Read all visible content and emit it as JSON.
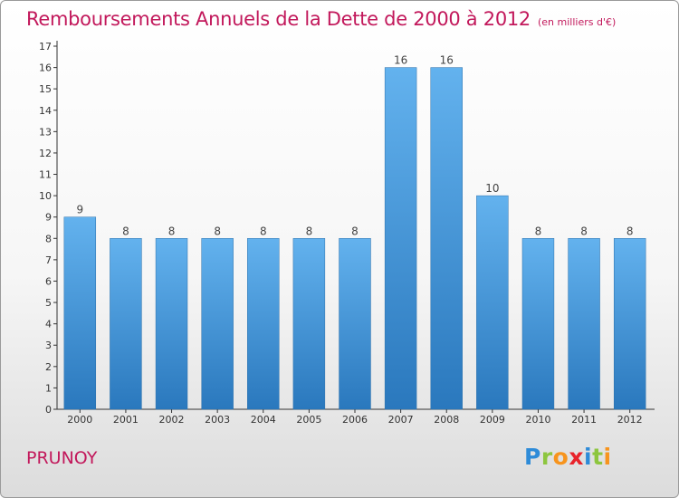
{
  "chart_data": {
    "type": "bar",
    "title": "Remboursements Annuels de la Dette de 2000 à 2012",
    "subtitle": "(en milliers d'€)",
    "categories": [
      "2000",
      "2001",
      "2002",
      "2003",
      "2004",
      "2005",
      "2006",
      "2007",
      "2008",
      "2009",
      "2010",
      "2011",
      "2012"
    ],
    "values": [
      9,
      8,
      8,
      8,
      8,
      8,
      8,
      16,
      16,
      10,
      8,
      8,
      8
    ],
    "data_labels": [
      "9",
      "8",
      "8",
      "8",
      "8",
      "8",
      "8",
      "16",
      "16",
      "10",
      "8",
      "8",
      "8"
    ],
    "y_ticks": [
      0,
      1,
      2,
      3,
      4,
      5,
      6,
      7,
      8,
      9,
      10,
      11,
      12,
      13,
      14,
      15,
      16,
      17
    ],
    "ylim": [
      0,
      17
    ],
    "xlabel": "",
    "ylabel": "",
    "grid": false,
    "bar_color": "#3d8fd6"
  },
  "footer": {
    "commune": "PRUNOY"
  },
  "logo": {
    "letters": [
      {
        "char": "P",
        "color": "#2e8bd8"
      },
      {
        "char": "r",
        "color": "#8dc63f"
      },
      {
        "char": "o",
        "color": "#f7941d"
      },
      {
        "char": "x",
        "color": "#e8232b"
      },
      {
        "char": "i",
        "color": "#2e8bd8"
      },
      {
        "char": "t",
        "color": "#8dc63f"
      },
      {
        "char": "i",
        "color": "#f7941d"
      }
    ]
  },
  "colors": {
    "title": "#c2185b",
    "axis": "#333333"
  }
}
